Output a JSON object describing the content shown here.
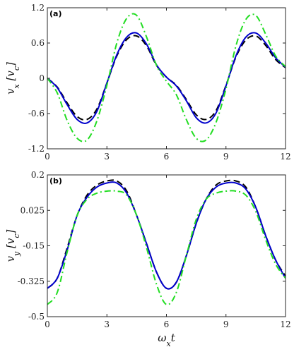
{
  "chart_data": [
    {
      "type": "line",
      "panel_label": "(a)",
      "xlabel": "",
      "ylabel": "v_x [v_c]",
      "xlim": [
        0,
        12
      ],
      "ylim": [
        -1.2,
        1.2
      ],
      "xticks": [
        "0",
        "3",
        "6",
        "9",
        "12"
      ],
      "yticks": [
        "-1.2",
        "-0.6",
        "0",
        "0.6",
        "1.2"
      ],
      "x": [
        0,
        0.5,
        1,
        1.5,
        2,
        2.5,
        3,
        3.5,
        4,
        4.5,
        5,
        5.5,
        6,
        6.5,
        7,
        7.5,
        8,
        8.5,
        9,
        9.5,
        10,
        10.5,
        11,
        11.5,
        12
      ],
      "series": [
        {
          "color": "#000000",
          "dash": "dashed",
          "values": [
            0,
            -0.15,
            -0.42,
            -0.65,
            -0.7,
            -0.52,
            -0.08,
            0.38,
            0.66,
            0.72,
            0.55,
            0.22,
            0.02,
            -0.12,
            -0.36,
            -0.62,
            -0.7,
            -0.55,
            -0.12,
            0.36,
            0.65,
            0.72,
            0.56,
            0.32,
            0.18
          ]
        },
        {
          "color": "#0000cc",
          "dash": "solid",
          "values": [
            0,
            -0.16,
            -0.45,
            -0.7,
            -0.76,
            -0.56,
            -0.08,
            0.4,
            0.7,
            0.77,
            0.58,
            0.23,
            0.02,
            -0.13,
            -0.38,
            -0.67,
            -0.76,
            -0.59,
            -0.13,
            0.38,
            0.7,
            0.77,
            0.6,
            0.35,
            0.19
          ]
        },
        {
          "color": "#22dd22",
          "dash": "dashdot",
          "values": [
            0,
            -0.25,
            -0.72,
            -1.02,
            -1.05,
            -0.72,
            -0.12,
            0.6,
            1.02,
            1.07,
            0.7,
            0.22,
            -0.05,
            -0.28,
            -0.7,
            -1.02,
            -1.05,
            -0.75,
            -0.18,
            0.55,
            1.0,
            1.07,
            0.75,
            0.38,
            0.2
          ]
        }
      ]
    },
    {
      "type": "line",
      "panel_label": "(b)",
      "xlabel": "ω_x t",
      "ylabel": "v_y [v_c]",
      "xlim": [
        0,
        12
      ],
      "ylim": [
        -0.5,
        0.2
      ],
      "xticks": [
        "0",
        "3",
        "6",
        "9",
        "12"
      ],
      "yticks": [
        "-0.5",
        "-0.325",
        "-0.15",
        "0.025",
        "0.2"
      ],
      "x": [
        0,
        0.5,
        1,
        1.5,
        2,
        2.5,
        3,
        3.5,
        4,
        4.5,
        5,
        5.5,
        6,
        6.5,
        7,
        7.5,
        8,
        8.5,
        9,
        9.5,
        10,
        10.5,
        11,
        11.5,
        12
      ],
      "series": [
        {
          "color": "#000000",
          "dash": "dashed",
          "values": [
            -0.36,
            -0.31,
            -0.16,
            0.0,
            0.1,
            0.15,
            0.17,
            0.17,
            0.12,
            0.0,
            -0.14,
            -0.28,
            -0.36,
            -0.33,
            -0.2,
            -0.04,
            0.08,
            0.15,
            0.17,
            0.17,
            0.14,
            0.04,
            -0.1,
            -0.22,
            -0.3
          ]
        },
        {
          "color": "#0000cc",
          "dash": "solid",
          "values": [
            -0.36,
            -0.31,
            -0.17,
            0.0,
            0.09,
            0.14,
            0.16,
            0.16,
            0.11,
            0.0,
            -0.14,
            -0.28,
            -0.36,
            -0.33,
            -0.2,
            -0.04,
            0.08,
            0.14,
            0.16,
            0.16,
            0.13,
            0.04,
            -0.1,
            -0.22,
            -0.31
          ]
        },
        {
          "color": "#22dd22",
          "dash": "dashdot",
          "values": [
            -0.44,
            -0.38,
            -0.18,
            0.0,
            0.08,
            0.11,
            0.12,
            0.12,
            0.1,
            0.0,
            -0.16,
            -0.34,
            -0.44,
            -0.38,
            -0.2,
            -0.02,
            0.08,
            0.11,
            0.12,
            0.12,
            0.1,
            0.02,
            -0.12,
            -0.24,
            -0.31
          ]
        }
      ]
    }
  ]
}
